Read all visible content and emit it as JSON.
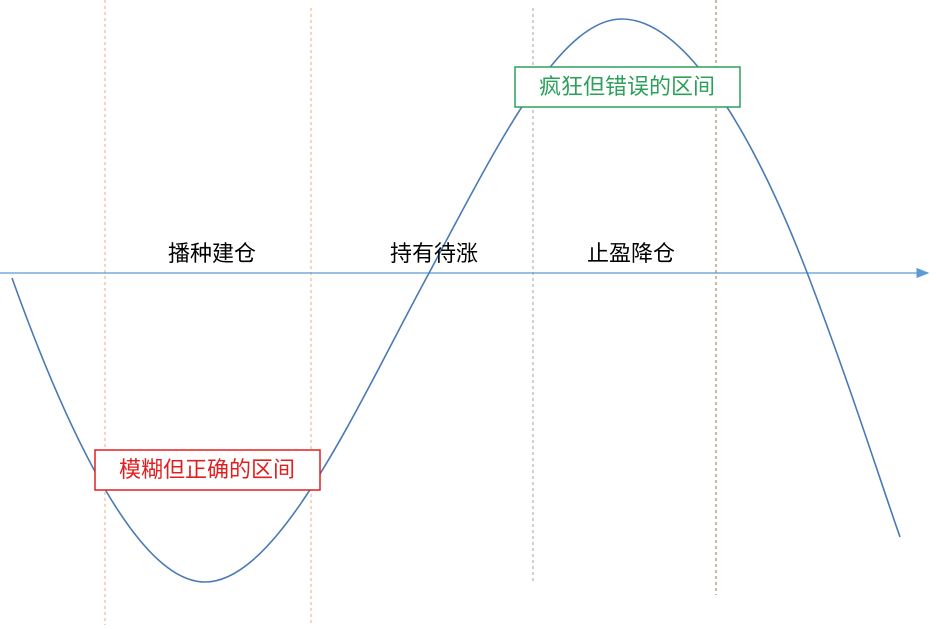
{
  "phases": [
    "播种建仓",
    "持有待涨",
    "止盈降仓"
  ],
  "zones": {
    "correct": "模糊但正确的区间",
    "wrong": "疯狂但错误的区间"
  }
}
